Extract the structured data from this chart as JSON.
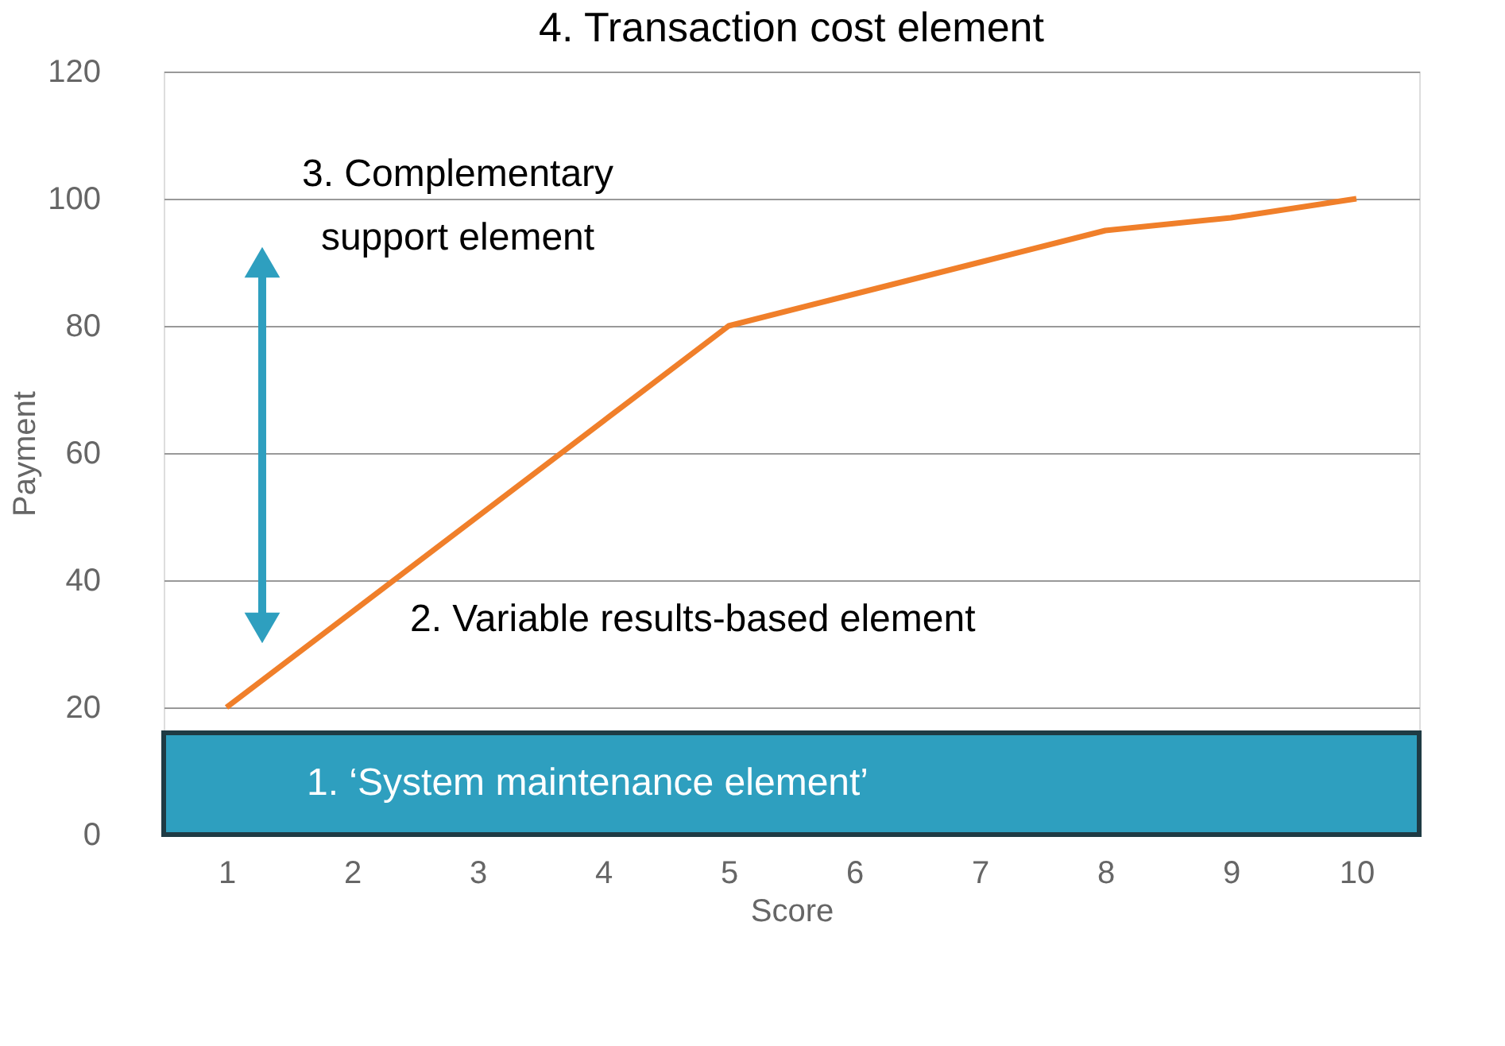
{
  "chart_data": {
    "type": "line",
    "title": "4. Transaction cost element",
    "xlabel": "Score",
    "ylabel": "Payment",
    "categories": [
      "1",
      "2",
      "3",
      "4",
      "5",
      "6",
      "7",
      "8",
      "9",
      "10"
    ],
    "series": [
      {
        "color": "#f07f2a",
        "values": [
          20,
          35,
          50,
          65,
          80,
          85,
          90,
          95,
          97,
          100
        ]
      }
    ],
    "ylim": [
      0,
      120
    ],
    "yticks": [
      0,
      20,
      40,
      60,
      80,
      100,
      120
    ],
    "grid": "y",
    "marker": "none",
    "line_style": "solid",
    "bands": [
      {
        "axis": "y",
        "from": 0,
        "to": 16,
        "label": "1. ‘System maintenance element’",
        "color": "#2e9fbf"
      }
    ],
    "annotations": [
      "2. Variable results-based element",
      "3. Complementary support element"
    ]
  }
}
